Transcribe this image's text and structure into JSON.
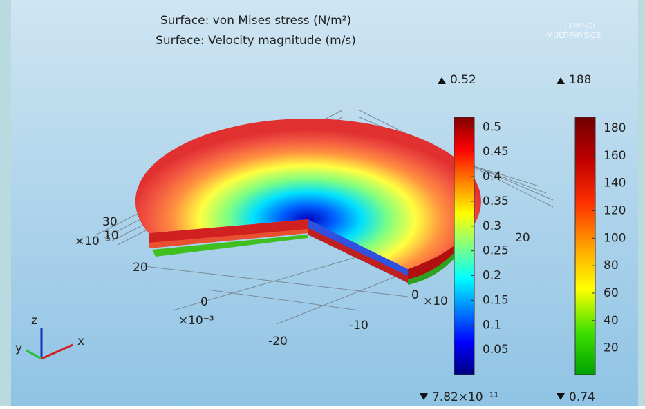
{
  "titles": [
    "Surface: von Mises stress (N/m²)",
    "Surface: Velocity magnitude (m/s)"
  ],
  "logo": [
    "COMSOL",
    "MULTIPHYSICS"
  ],
  "colorbars": [
    {
      "min": {
        "value": 7.82e-11,
        "label": "7.82×10⁻¹¹"
      },
      "max": 0.52,
      "ticks": [
        0.05,
        0.1,
        0.15,
        0.2,
        0.25,
        0.3,
        0.35,
        0.4,
        0.45,
        0.5
      ],
      "colors": [
        "#00007f",
        "#0000ff",
        "#0080ff",
        "#00ffff",
        "#80ff80",
        "#ffff00",
        "#ff8000",
        "#ff0000",
        "#7f0000"
      ]
    },
    {
      "min": 0.74,
      "max": 188,
      "ticks": [
        20,
        40,
        60,
        80,
        100,
        120,
        140,
        160,
        180
      ],
      "colors": [
        "#00a000",
        "#40e000",
        "#ffff00",
        "#ffa000",
        "#ff3000",
        "#c00000",
        "#700000"
      ]
    }
  ],
  "axis_tick_labels": [
    "30",
    "10",
    "×10⁻³",
    "20",
    "0",
    "×10⁻³",
    "-20",
    "-10",
    "0",
    "×10",
    "20"
  ],
  "triad": [
    "z",
    "y",
    "x"
  ]
}
